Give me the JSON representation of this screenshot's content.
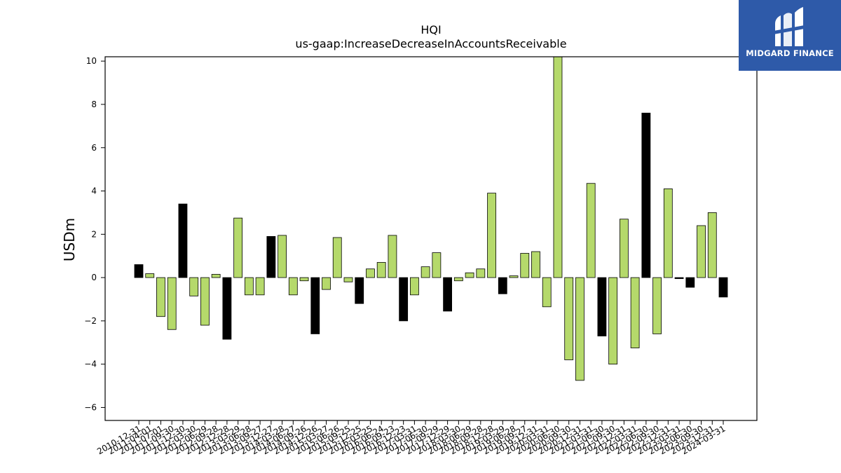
{
  "brand": {
    "name": "MIDGARD FINANCE",
    "bg_color": "#2e5aa9"
  },
  "chart_data": {
    "type": "bar",
    "title": "HQI",
    "subtitle": "us-gaap:IncreaseDecreaseInAccountsReceivable",
    "ylabel": "USDm",
    "xlabel": "",
    "ylim": [
      -6.6,
      10.2
    ],
    "yticks": [
      -6,
      -4,
      -2,
      0,
      2,
      4,
      6,
      8,
      10
    ],
    "grid": false,
    "colors": {
      "annual": "#000000",
      "quarterly": "#b5d96b"
    },
    "categories": [
      "2010-12-31",
      "2011-04-01",
      "2011-07-01",
      "2011-09-30",
      "2011-12-30",
      "2012-03-30",
      "2012-06-29",
      "2012-09-28",
      "2012-12-28",
      "2013-03-29",
      "2013-06-28",
      "2013-09-27",
      "2013-12-27",
      "2014-03-28",
      "2014-06-27",
      "2014-09-26",
      "2014-12-26",
      "2015-03-27",
      "2015-06-26",
      "2015-09-25",
      "2015-12-25",
      "2016-03-25",
      "2016-06-24",
      "2016-09-23",
      "2016-12-23",
      "2017-03-31",
      "2017-06-30",
      "2017-09-29",
      "2017-12-29",
      "2018-03-30",
      "2018-06-29",
      "2018-09-28",
      "2018-12-28",
      "2019-03-29",
      "2019-06-28",
      "2019-09-27",
      "2019-12-31",
      "2020-03-31",
      "2020-06-30",
      "2020-09-30",
      "2020-12-31",
      "2021-03-31",
      "2021-06-30",
      "2021-09-30",
      "2021-12-31",
      "2022-03-31",
      "2022-06-30",
      "2022-09-30",
      "2022-12-31",
      "2023-03-31",
      "2023-06-30",
      "2023-09-30",
      "2023-12-31",
      "2024-03-31"
    ],
    "tick_labels": [
      "2010-12-31",
      "2011-04-01",
      "2011-07-01",
      "2011-09-30",
      "2011-12-30",
      "2012-03-30",
      "2012-06-29",
      "2012-09-28",
      "2012-12-28",
      "2013-03-29",
      "2013-06-28",
      "2013-09-27",
      "2013-12-27",
      "2014-03-28",
      "2014-06-27",
      "2014-09-26",
      "2014-12-26",
      "2015-03-27",
      "2015-06-26",
      "2015-09-25",
      "2015-12-25",
      "2016-03-25",
      "2016-06-24",
      "2016-09-23",
      "2016-12-23",
      "2017-03-31",
      "2017-06-30",
      "2017-09-29",
      "2017-12-29",
      "2018-03-30",
      "2018-06-29",
      "2018-09-28",
      "2018-12-28",
      "2019-03-29",
      "2019-06-28",
      "2019-09-27",
      "2019-12-31",
      "2020-03-31",
      "2020-06-30",
      "2020-09-30",
      "2020-12-31",
      "2021-03-31",
      "2021-06-30",
      "2021-09-30",
      "2021-12-31",
      "2022-03-31",
      "2022-06-30",
      "2022-09-30",
      "2022-12-31",
      "2023-03-31",
      "2023-06-30",
      "2023-09-30",
      "2023-12-31",
      "2024-03-31"
    ],
    "values": [
      0.6,
      0.18,
      -1.8,
      -2.4,
      3.4,
      -0.85,
      -2.2,
      0.15,
      -2.85,
      2.75,
      -0.8,
      -0.8,
      1.9,
      1.95,
      -0.8,
      -0.15,
      -2.6,
      -0.55,
      1.85,
      -0.2,
      -1.2,
      0.4,
      0.7,
      1.95,
      -2.0,
      -0.8,
      0.5,
      1.15,
      -1.55,
      -0.15,
      0.22,
      0.4,
      3.9,
      -0.75,
      0.08,
      1.12,
      1.2,
      -1.35,
      10.2,
      -3.8,
      -4.75,
      4.35,
      -2.7,
      -4.0,
      2.7,
      -3.25,
      7.6,
      -2.6,
      4.1,
      -0.05,
      -0.45,
      2.4,
      3.0,
      -0.9
    ],
    "annual": [
      true,
      false,
      false,
      false,
      true,
      false,
      false,
      false,
      true,
      false,
      false,
      false,
      true,
      false,
      false,
      false,
      true,
      false,
      false,
      false,
      true,
      false,
      false,
      false,
      true,
      false,
      false,
      false,
      true,
      false,
      false,
      false,
      false,
      true,
      false,
      false,
      false,
      false,
      false,
      false,
      false,
      false,
      true,
      false,
      false,
      false,
      true,
      false,
      false,
      true,
      true,
      false,
      false,
      true
    ]
  }
}
